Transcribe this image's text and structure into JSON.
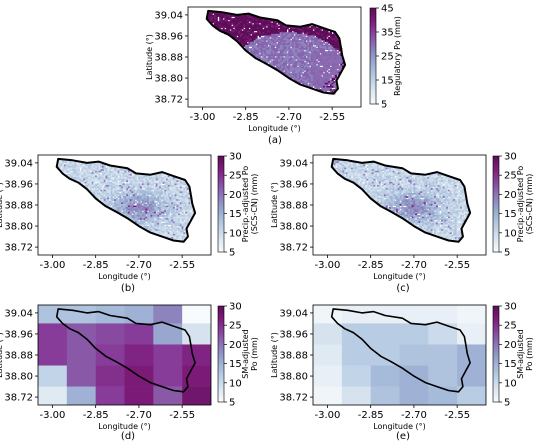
{
  "colors": {
    "cmap": [
      "#f7fbfd",
      "#dfe9f2",
      "#bfd2e6",
      "#a3b8d8",
      "#8f97c6",
      "#8a6db3",
      "#873f9b",
      "#7c1a78",
      "#5e0e59"
    ],
    "outline": "#000000"
  },
  "chart_data": [
    {
      "id": "a",
      "type": "heatmap",
      "panel_label": "(a)",
      "xlabel": "Longitude (°)",
      "ylabel": "Latitude (°)",
      "xticks": [
        "-3.00",
        "-2.85",
        "-2.70",
        "-2.55"
      ],
      "xtick_values": [
        -3.0,
        -2.85,
        -2.7,
        -2.55
      ],
      "yticks": [
        "39.04",
        "38.96",
        "38.88",
        "38.80",
        "38.72"
      ],
      "ytick_values": [
        39.04,
        38.96,
        38.88,
        38.8,
        38.72
      ],
      "xlim": [
        -3.05,
        -2.45
      ],
      "ylim": [
        38.69,
        39.07
      ],
      "colorbar_label": "Regulatory Po (mm)",
      "colorbar_ticks": [
        "5",
        "15",
        "25",
        "35",
        "45"
      ],
      "colorbar_range": [
        5,
        45
      ],
      "style": "fine",
      "field": {
        "base": 34,
        "center": [
          -2.7,
          38.86
        ],
        "center_value": 28,
        "spread": 0.18
      }
    },
    {
      "id": "b",
      "type": "heatmap",
      "panel_label": "(b)",
      "xlabel": "Longitude (°)",
      "ylabel": "Latitude (°)",
      "xticks": [
        "-3.00",
        "-2.85",
        "-2.70",
        "-2.55"
      ],
      "xtick_values": [
        -3.0,
        -2.85,
        -2.7,
        -2.55
      ],
      "yticks": [
        "39.04",
        "38.96",
        "38.88",
        "38.80",
        "38.72"
      ],
      "ytick_values": [
        39.04,
        38.96,
        38.88,
        38.8,
        38.72
      ],
      "xlim": [
        -3.05,
        -2.45
      ],
      "ylim": [
        38.69,
        39.07
      ],
      "colorbar_label": "Precip.-adjusted Po (SCS-CN) (mm)",
      "colorbar_label_lines": [
        "Precip.-adjusted Po",
        "(SCS-CN) (mm)"
      ],
      "colorbar_ticks": [
        "5",
        "10",
        "15",
        "20",
        "25",
        "30"
      ],
      "colorbar_range": [
        5,
        30
      ],
      "style": "fine",
      "field": {
        "base": 11,
        "center": [
          -2.7,
          38.87
        ],
        "center_value": 19,
        "spread": 0.06
      }
    },
    {
      "id": "c",
      "type": "heatmap",
      "panel_label": "(c)",
      "xlabel": "Longitude (°)",
      "ylabel": "Latitude (°)",
      "xticks": [
        "-3.00",
        "-2.85",
        "-2.70",
        "-2.55"
      ],
      "xtick_values": [
        -3.0,
        -2.85,
        -2.7,
        -2.55
      ],
      "yticks": [
        "39.04",
        "38.96",
        "38.88",
        "38.80",
        "38.72"
      ],
      "ytick_values": [
        39.04,
        38.96,
        38.88,
        38.8,
        38.72
      ],
      "xlim": [
        -3.05,
        -2.45
      ],
      "ylim": [
        38.69,
        39.07
      ],
      "colorbar_label": "Precip.-adjusted Po (SCS-CN) (mm)",
      "colorbar_label_lines": [
        "Precip.-adjusted Po",
        "(SCS-CN) (mm)"
      ],
      "colorbar_ticks": [
        "5",
        "10",
        "15",
        "20",
        "25",
        "30"
      ],
      "colorbar_range": [
        5,
        30
      ],
      "style": "fine",
      "field": {
        "base": 11,
        "center": [
          -2.7,
          38.87
        ],
        "center_value": 19,
        "spread": 0.06
      }
    },
    {
      "id": "d",
      "type": "heatmap",
      "panel_label": "(d)",
      "xlabel": "Longitude (°)",
      "ylabel": "Latitude (°)",
      "xticks": [
        "-3.00",
        "-2.85",
        "-2.70",
        "-2.55"
      ],
      "xtick_values": [
        -3.0,
        -2.85,
        -2.7,
        -2.55
      ],
      "yticks": [
        "39.04",
        "38.96",
        "38.88",
        "38.80",
        "38.72"
      ],
      "ytick_values": [
        39.04,
        38.96,
        38.88,
        38.8,
        38.72
      ],
      "xlim": [
        -3.05,
        -2.45
      ],
      "ylim": [
        38.69,
        39.07
      ],
      "colorbar_label": "SM-adjusted Po (mm)",
      "colorbar_label_lines": [
        "SM-adjusted",
        "Po (mm)"
      ],
      "colorbar_ticks": [
        "5",
        "10",
        "15",
        "20",
        "25",
        "30"
      ],
      "colorbar_range": [
        5,
        30
      ],
      "style": "coarse",
      "grid_x": [
        -3.05,
        -2.95,
        -2.85,
        -2.75,
        -2.65,
        -2.55,
        -2.45
      ],
      "grid_y": [
        39.07,
        39.0,
        38.92,
        38.84,
        38.76,
        38.69
      ],
      "cells": [
        [
          13,
          13,
          14,
          15,
          19,
          5
        ],
        [
          24,
          22,
          23,
          24,
          16,
          9
        ],
        [
          24,
          22,
          24,
          26,
          24,
          26
        ],
        [
          11,
          22,
          25,
          27,
          24,
          27
        ],
        [
          8,
          15,
          24,
          27,
          22,
          28
        ]
      ]
    },
    {
      "id": "e",
      "type": "heatmap",
      "panel_label": "(e)",
      "xlabel": "Longitude (°)",
      "ylabel": "Latitude (°)",
      "xticks": [
        "-3.00",
        "-2.85",
        "-2.70",
        "-2.55"
      ],
      "xtick_values": [
        -3.0,
        -2.85,
        -2.7,
        -2.55
      ],
      "yticks": [
        "39.04",
        "38.96",
        "38.88",
        "38.80",
        "38.72"
      ],
      "ytick_values": [
        39.04,
        38.96,
        38.88,
        38.8,
        38.72
      ],
      "xlim": [
        -3.05,
        -2.45
      ],
      "ylim": [
        38.69,
        39.07
      ],
      "colorbar_label": "SM-adjusted Po (mm)",
      "colorbar_label_lines": [
        "SM-adjusted",
        "Po (mm)"
      ],
      "colorbar_ticks": [
        "5",
        "10",
        "15",
        "20",
        "25",
        "30"
      ],
      "colorbar_range": [
        5,
        30
      ],
      "style": "coarse",
      "grid_x": [
        -3.05,
        -2.95,
        -2.85,
        -2.75,
        -2.65,
        -2.55,
        -2.45
      ],
      "grid_y": [
        39.07,
        39.0,
        38.92,
        38.84,
        38.76,
        38.69
      ],
      "cells": [
        [
          6,
          7,
          7,
          7,
          7,
          6
        ],
        [
          9,
          12,
          12,
          12,
          10,
          7
        ],
        [
          8,
          12,
          12,
          13,
          13,
          15
        ],
        [
          7,
          11,
          14,
          15,
          13,
          15
        ],
        [
          6,
          9,
          13,
          15,
          14,
          12
        ]
      ]
    }
  ]
}
